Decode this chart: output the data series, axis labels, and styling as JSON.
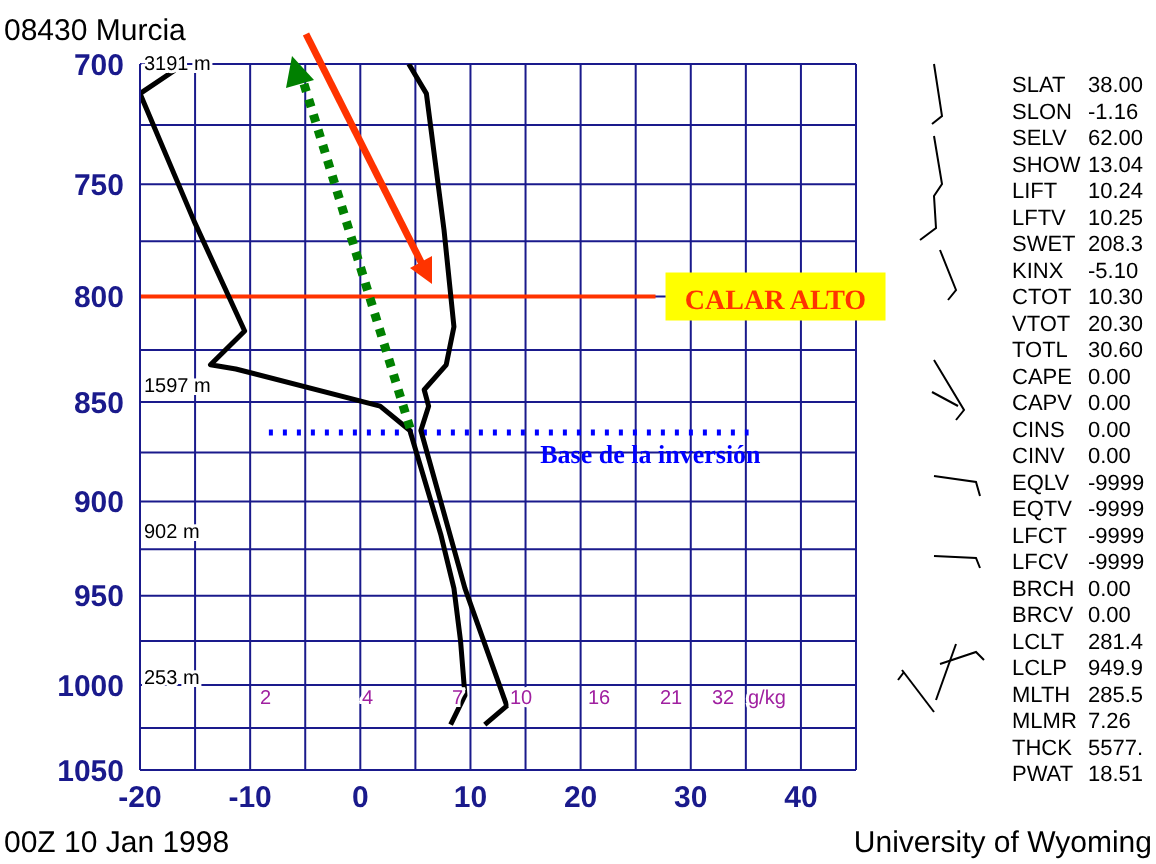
{
  "chart_data": {
    "type": "line",
    "title": "08430  Murcia",
    "xlim": [
      -20,
      45
    ],
    "xticks": [
      -20,
      {
        "value": -15,
        "label": null
      },
      -10,
      {
        "value": -5,
        "label": null
      },
      0,
      {
        "value": 5,
        "label": null
      },
      10,
      {
        "value": 15,
        "label": null
      },
      20,
      {
        "value": 25,
        "label": null
      },
      30,
      {
        "value": 35,
        "label": null
      },
      40,
      {
        "value": 45,
        "label": null
      }
    ],
    "ylim": [
      1050,
      700
    ],
    "yticks": [
      700,
      {
        "value": 725,
        "label": null
      },
      750,
      {
        "value": 775,
        "label": null
      },
      800,
      {
        "value": 825,
        "label": null
      },
      850,
      {
        "value": 875,
        "label": null
      },
      900,
      {
        "value": 925,
        "label": null
      },
      950,
      {
        "value": 975,
        "label": null
      },
      1000,
      {
        "value": 1025,
        "label": null
      },
      1050
    ],
    "log": "y",
    "grid": true,
    "marker": "none",
    "series": [
      {
        "color": "#000000",
        "x": [
          4.4,
          6.0,
          7.6,
          8.5,
          7.8,
          5.8,
          6.2,
          5.5,
          9.5,
          13.3,
          11.3
        ],
        "values": [
          700,
          712,
          770,
          814,
          832,
          844,
          852,
          864,
          946,
          1012,
          1023
        ]
      },
      {
        "color": "#000000",
        "x": [
          -16,
          -20,
          -15.1,
          -10.5,
          -13.6,
          -11.3,
          1.8,
          4.5,
          7.3,
          8.5,
          9.1,
          9.5,
          8.2
        ],
        "values": [
          700,
          712,
          766,
          816,
          832,
          834,
          852,
          864,
          917,
          946,
          975,
          1006,
          1023
        ]
      }
    ],
    "ref_lines": [
      {
        "axis": "y",
        "value": 800,
        "label": "CALAR ALTO",
        "color": "#ff3300",
        "line_style": "solid"
      },
      {
        "axis": "y",
        "value": 865,
        "label": "Base de la inversión",
        "color": "#0000ff",
        "line_style": "dotted"
      }
    ],
    "annotations": [
      "00Z 10 Jan 1998",
      "University of Wyoming",
      "3191 m",
      "1597 m",
      "902 m",
      "253 m",
      "2",
      "4",
      "7",
      "10",
      "16",
      "21",
      "32",
      "g/kg",
      "SLAT 38.00",
      "SLON -1.16",
      "SELV 62.00",
      "SHOW 13.04",
      "LIFT 10.24",
      "LFTV 10.25",
      "SWET 208.3",
      "KINX -5.10",
      "CTOT 10.30",
      "VTOT 20.30",
      "TOTL 30.60",
      "CAPE 0.00",
      "CAPV 0.00",
      "CINS 0.00",
      "CINV 0.00",
      "EQLV -9999",
      "EQTV -9999",
      "LFCT -9999",
      "LFCV -9999",
      "BRCH 0.00",
      "BRCV 0.00",
      "LCLT 281.4",
      "LCLP 949.9",
      "MLTH 285.5",
      "MLMR 7.26",
      "THCK 5577.",
      "PWAT 18.51"
    ]
  }
}
